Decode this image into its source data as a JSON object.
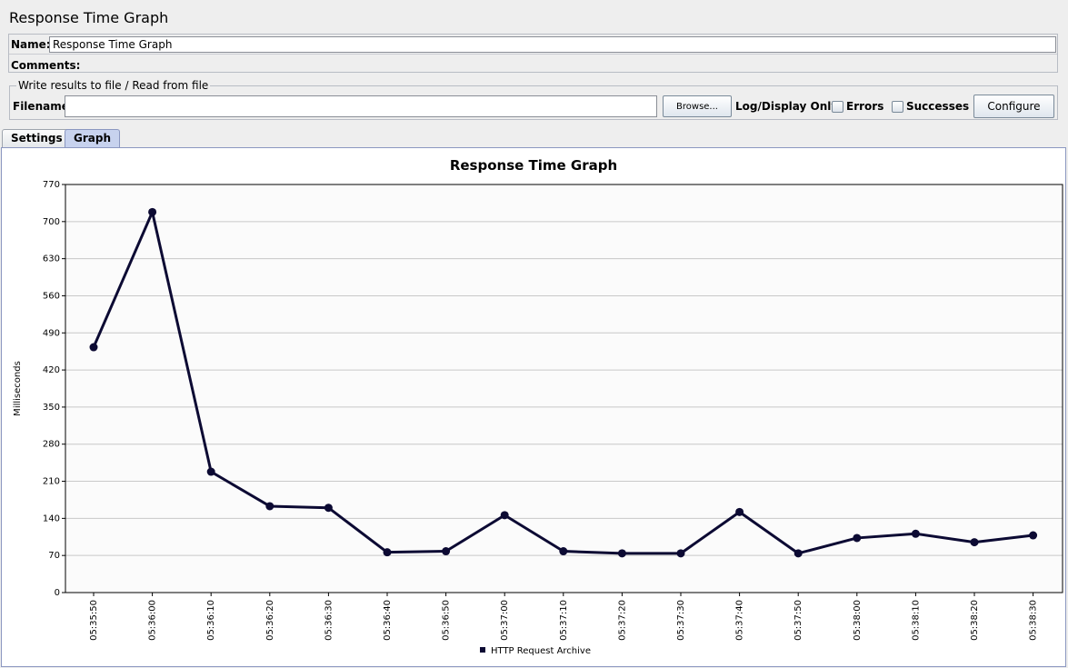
{
  "panel": {
    "title": "Response Time Graph"
  },
  "name_field": {
    "label": "Name:",
    "value": "Response Time Graph"
  },
  "comments": {
    "label": "Comments:"
  },
  "file_section": {
    "legend": "Write results to file / Read from file",
    "filename_label": "Filename",
    "filename_value": "",
    "browse_label": "Browse...",
    "log_display_label": "Log/Display Only:",
    "errors_label": "Errors",
    "successes_label": "Successes",
    "configure_label": "Configure"
  },
  "tabs": [
    {
      "label": "Settings",
      "active": false
    },
    {
      "label": "Graph",
      "active": true
    }
  ],
  "colors": {
    "series": "#0c0a33",
    "grid": "#c8c8c8",
    "active_tab": "#c7d2ee"
  },
  "chart_data": {
    "type": "line",
    "title": "Response Time Graph",
    "xlabel": "",
    "ylabel": "Milliseconds",
    "ylim": [
      0,
      770
    ],
    "yticks": [
      0,
      70,
      140,
      210,
      280,
      350,
      420,
      490,
      560,
      630,
      700,
      770
    ],
    "grid": true,
    "legend_position": "bottom",
    "categories": [
      "05:35:50",
      "05:36:00",
      "05:36:10",
      "05:36:20",
      "05:36:30",
      "05:36:40",
      "05:36:50",
      "05:37:00",
      "05:37:10",
      "05:37:20",
      "05:37:30",
      "05:37:40",
      "05:37:50",
      "05:38:00",
      "05:38:10",
      "05:38:20",
      "05:38:30"
    ],
    "series": [
      {
        "name": "HTTP Request Archive",
        "values": [
          463,
          718,
          228,
          163,
          160,
          76,
          78,
          146,
          78,
          74,
          74,
          152,
          74,
          103,
          111,
          95,
          108
        ]
      }
    ]
  }
}
